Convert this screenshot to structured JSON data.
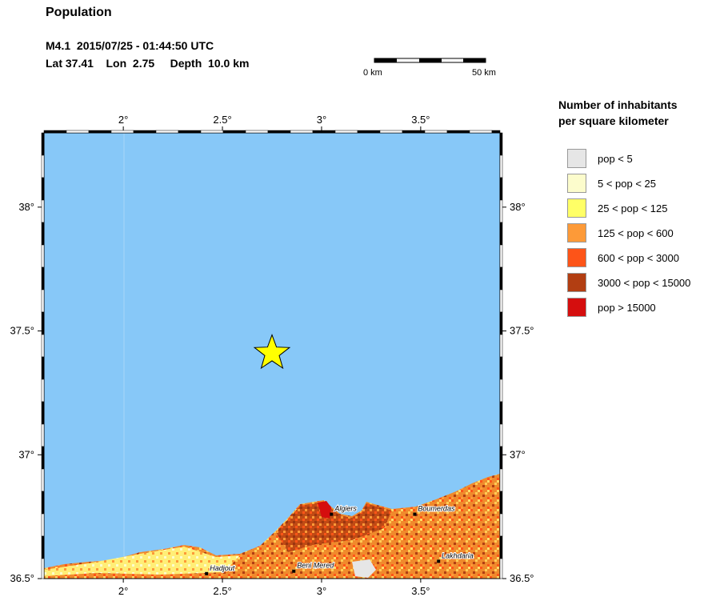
{
  "header": {
    "title": "Population",
    "event_line1": "M4.1  2015/07/25 - 01:44:50 UTC",
    "event_line2": "Lat 37.41    Lon  2.75     Depth  10.0 km"
  },
  "scalebar": {
    "left_label": "0 km",
    "right_label": "50 km"
  },
  "map": {
    "lon_range": [
      1.6,
      3.9
    ],
    "lat_range": [
      36.5,
      38.3
    ],
    "lon_ticks": [
      {
        "value": 2.0,
        "label": "2°"
      },
      {
        "value": 2.5,
        "label": "2.5°"
      },
      {
        "value": 3.0,
        "label": "3°"
      },
      {
        "value": 3.5,
        "label": "3.5°"
      }
    ],
    "lat_ticks": [
      {
        "value": 36.5,
        "label": "36.5°"
      },
      {
        "value": 37.0,
        "label": "37°"
      },
      {
        "value": 37.5,
        "label": "37.5°"
      },
      {
        "value": 38.0,
        "label": "38°"
      }
    ],
    "epicenter": {
      "lon": 2.75,
      "lat": 37.41
    },
    "cities": [
      {
        "name": "Algiers",
        "lon": 3.05,
        "lat": 36.76
      },
      {
        "name": "Boumerdas",
        "lon": 3.47,
        "lat": 36.76
      },
      {
        "name": "Hadjout",
        "lon": 2.42,
        "lat": 36.52
      },
      {
        "name": "Beni Mered",
        "lon": 2.86,
        "lat": 36.53
      },
      {
        "name": "Lakhdaria",
        "lon": 3.59,
        "lat": 36.57
      }
    ],
    "colors": {
      "water": "#87c8f8",
      "star": "#ffff00"
    }
  },
  "legend": {
    "title_line1": "Number of inhabitants",
    "title_line2": "per square kilometer",
    "items": [
      {
        "label": "pop < 5",
        "color": "#e6e6e6"
      },
      {
        "label": "5 < pop < 25",
        "color": "#fcfccc"
      },
      {
        "label": "25 < pop < 125",
        "color": "#ffff66"
      },
      {
        "label": "125 < pop < 600",
        "color": "#fd9a38"
      },
      {
        "label": "600 < pop < 3000",
        "color": "#fd5418"
      },
      {
        "label": "3000 < pop < 15000",
        "color": "#b23e12"
      },
      {
        "label": "pop > 15000",
        "color": "#d50e0e"
      }
    ]
  }
}
